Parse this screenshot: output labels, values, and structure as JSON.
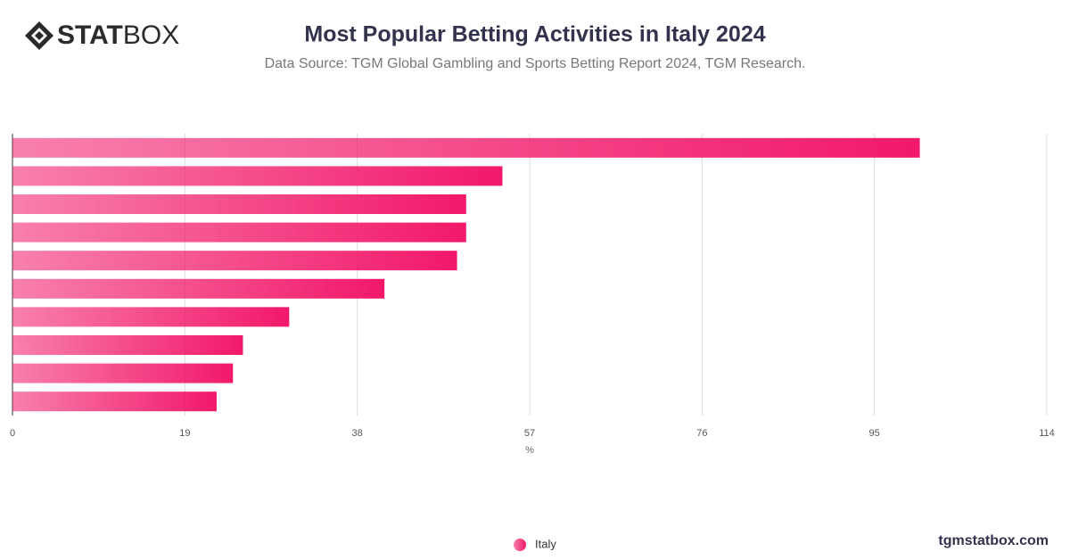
{
  "logo": {
    "bold": "STAT",
    "light": "BOX"
  },
  "footer": "tgmstatbox.com",
  "chart_data": {
    "type": "hbar",
    "title": "Most Popular Betting Activities in Italy 2024",
    "subtitle": "Data Source: TGM Global Gambling and Sports Betting Report 2024, TGM Research.",
    "xlabel": "%",
    "categories": [
      null,
      null,
      null,
      null,
      null,
      null,
      null,
      null,
      null,
      null
    ],
    "series": [
      {
        "name": "Italy",
        "color": "#f2186a",
        "values": [
          100,
          54,
          50,
          50,
          49,
          41,
          30.5,
          25.4,
          24.3,
          22.5
        ]
      }
    ],
    "xlim": [
      0,
      114
    ],
    "xticks": [
      0,
      19,
      38,
      57,
      76,
      95,
      114
    ],
    "grid": true,
    "legend": "bottom"
  }
}
